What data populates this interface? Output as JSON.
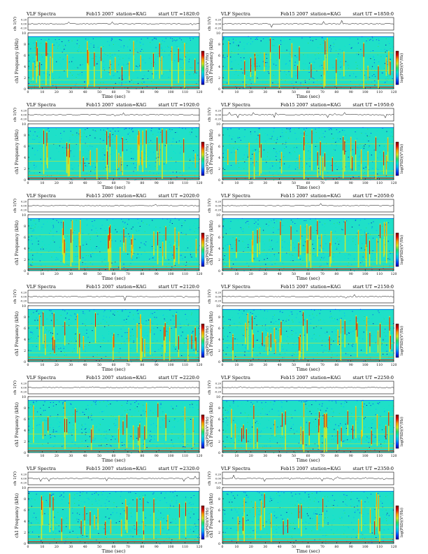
{
  "colors": {
    "background": "#1fe0c8",
    "colormap": [
      "#0000a8",
      "#0044ff",
      "#00b4ff",
      "#00e8d0",
      "#30e060",
      "#d8e820",
      "#ffa000",
      "#e01000",
      "#800000"
    ]
  },
  "chart_data": [
    {
      "type": "heatmap",
      "header_left": "VLF Spectra",
      "date": "Feb15 2007",
      "station": "station=KAG",
      "start": "start  UT =1820:0",
      "ch_label": "ch 1(V)",
      "ch_ticks": [
        "0.20",
        "0.00",
        "-0.20"
      ],
      "y_label": "ch1 Frequency (kHz)",
      "y_ticks": [
        "0",
        "2",
        "4",
        "6",
        "8",
        "10"
      ],
      "x_label": "Time (sec)",
      "x_ticks": [
        "0",
        "10",
        "20",
        "30",
        "40",
        "50",
        "60",
        "70",
        "80",
        "90",
        "100",
        "110",
        "120"
      ],
      "cbar_label": "log(PSD)(V²/Hz)",
      "xlim": [
        0,
        120
      ],
      "ylim": [
        0,
        10
      ]
    },
    {
      "type": "heatmap",
      "header_left": "VLF Spectra",
      "date": "Feb15 2007",
      "station": "station=KAG",
      "start": "start  UT =1850:0",
      "ch_label": "ch 1(V)",
      "ch_ticks": [
        "0.20",
        "0.00",
        "-0.20"
      ],
      "y_label": "ch1 Frequency (kHz)",
      "y_ticks": [
        "0",
        "2",
        "4",
        "6",
        "8",
        "10"
      ],
      "x_label": "Time (sec)",
      "x_ticks": [
        "0",
        "10",
        "20",
        "30",
        "40",
        "50",
        "60",
        "70",
        "80",
        "90",
        "100",
        "110",
        "120"
      ],
      "cbar_label": "log(PSD)(V²/Hz)",
      "xlim": [
        0,
        120
      ],
      "ylim": [
        0,
        10
      ]
    },
    {
      "type": "heatmap",
      "header_left": "VLF Spectra",
      "date": "Feb15 2007",
      "station": "station=KAG",
      "start": "start  UT =1920:0",
      "ch_label": "ch 1(V)",
      "ch_ticks": [
        "0.20",
        "0.00",
        "-0.20"
      ],
      "y_label": "ch1 Frequency (kHz)",
      "y_ticks": [
        "0",
        "2",
        "4",
        "6",
        "8",
        "10"
      ],
      "x_label": "Time (sec)",
      "x_ticks": [
        "0",
        "10",
        "20",
        "30",
        "40",
        "50",
        "60",
        "70",
        "80",
        "90",
        "100",
        "110",
        "120"
      ],
      "cbar_label": "log(PSD)(V²/Hz)",
      "xlim": [
        0,
        120
      ],
      "ylim": [
        0,
        10
      ]
    },
    {
      "type": "heatmap",
      "header_left": "VLF Spectra",
      "date": "Feb15 2007",
      "station": "station=KAG",
      "start": "start  UT =1950:0",
      "ch_label": "ch 1(V)",
      "ch_ticks": [
        "0.20",
        "0.00",
        "-0.20"
      ],
      "y_label": "ch1 Frequency (kHz)",
      "y_ticks": [
        "0",
        "2",
        "4",
        "6",
        "8",
        "10"
      ],
      "x_label": "Time (sec)",
      "x_ticks": [
        "0",
        "10",
        "20",
        "30",
        "40",
        "50",
        "60",
        "70",
        "80",
        "90",
        "100",
        "110",
        "120"
      ],
      "cbar_label": "log(PSD)(V²/Hz)",
      "xlim": [
        0,
        120
      ],
      "ylim": [
        0,
        10
      ]
    },
    {
      "type": "heatmap",
      "header_left": "VLF Spectra",
      "date": "Feb15 2007",
      "station": "station=KAG",
      "start": "start  UT =2020:0",
      "ch_label": "ch 1(V)",
      "ch_ticks": [
        "0.20",
        "0.00",
        "-0.20"
      ],
      "y_label": "ch1 Frequency (kHz)",
      "y_ticks": [
        "0",
        "2",
        "4",
        "6",
        "8",
        "10"
      ],
      "x_label": "Time (sec)",
      "x_ticks": [
        "0",
        "10",
        "20",
        "30",
        "40",
        "50",
        "60",
        "70",
        "80",
        "90",
        "100",
        "110",
        "120"
      ],
      "cbar_label": "log(PSD)(V²/Hz)",
      "xlim": [
        0,
        120
      ],
      "ylim": [
        0,
        10
      ]
    },
    {
      "type": "heatmap",
      "header_left": "VLF Spectra",
      "date": "Feb15 2007",
      "station": "station=KAG",
      "start": "start  UT =2050:0",
      "ch_label": "ch 1(V)",
      "ch_ticks": [
        "0.20",
        "0.00",
        "-0.20"
      ],
      "y_label": "ch1 Frequency (kHz)",
      "y_ticks": [
        "0",
        "2",
        "4",
        "6",
        "8",
        "10"
      ],
      "x_label": "Time (sec)",
      "x_ticks": [
        "0",
        "10",
        "20",
        "30",
        "40",
        "50",
        "60",
        "70",
        "80",
        "90",
        "100",
        "110",
        "120"
      ],
      "cbar_label": "log(PSD)(V²/Hz)",
      "xlim": [
        0,
        120
      ],
      "ylim": [
        0,
        10
      ]
    },
    {
      "type": "heatmap",
      "header_left": "VLF Spectra",
      "date": "Feb15 2007",
      "station": "station=KAG",
      "start": "start  UT =2120:0",
      "ch_label": "ch 1(V)",
      "ch_ticks": [
        "0.20",
        "0.00",
        "-0.20"
      ],
      "y_label": "ch1 Frequency (kHz)",
      "y_ticks": [
        "0",
        "2",
        "4",
        "6",
        "8",
        "10"
      ],
      "x_label": "Time (sec)",
      "x_ticks": [
        "0",
        "10",
        "20",
        "30",
        "40",
        "50",
        "60",
        "70",
        "80",
        "90",
        "100",
        "110",
        "120"
      ],
      "cbar_label": "log(PSD)(V²/Hz)",
      "xlim": [
        0,
        120
      ],
      "ylim": [
        0,
        10
      ]
    },
    {
      "type": "heatmap",
      "header_left": "VLF Spectra",
      "date": "Feb15 2007",
      "station": "station=KAG",
      "start": "start  UT =2150:0",
      "ch_label": "ch 1(V)",
      "ch_ticks": [
        "0.20",
        "0.00",
        "-0.20"
      ],
      "y_label": "ch1 Frequency (kHz)",
      "y_ticks": [
        "0",
        "2",
        "4",
        "6",
        "8",
        "10"
      ],
      "x_label": "Time (sec)",
      "x_ticks": [
        "0",
        "10",
        "20",
        "30",
        "40",
        "50",
        "60",
        "70",
        "80",
        "90",
        "100",
        "110",
        "120"
      ],
      "cbar_label": "log(PSD)(V²/Hz)",
      "xlim": [
        0,
        120
      ],
      "ylim": [
        0,
        10
      ]
    },
    {
      "type": "heatmap",
      "header_left": "VLF Spectra",
      "date": "Feb15 2007",
      "station": "station=KAG",
      "start": "start  UT =2220:0",
      "ch_label": "ch 1(V)",
      "ch_ticks": [
        "0.20",
        "0.00",
        "-0.20"
      ],
      "y_label": "ch1 Frequency (kHz)",
      "y_ticks": [
        "0",
        "2",
        "4",
        "6",
        "8",
        "10"
      ],
      "x_label": "Time (sec)",
      "x_ticks": [
        "0",
        "10",
        "20",
        "30",
        "40",
        "50",
        "60",
        "70",
        "80",
        "90",
        "100",
        "110",
        "120"
      ],
      "cbar_label": "log(PSD)(V²/Hz)",
      "xlim": [
        0,
        120
      ],
      "ylim": [
        0,
        10
      ]
    },
    {
      "type": "heatmap",
      "header_left": "VLF Spectra",
      "date": "Feb15 2007",
      "station": "station=KAG",
      "start": "start  UT =2250:0",
      "ch_label": "ch 1(V)",
      "ch_ticks": [
        "0.20",
        "0.00",
        "-0.20"
      ],
      "y_label": "ch1 Frequency (kHz)",
      "y_ticks": [
        "0",
        "2",
        "4",
        "6",
        "8",
        "10"
      ],
      "x_label": "Time (sec)",
      "x_ticks": [
        "0",
        "10",
        "20",
        "30",
        "40",
        "50",
        "60",
        "70",
        "80",
        "90",
        "100",
        "110",
        "120"
      ],
      "cbar_label": "log(PSD)(V²/Hz)",
      "xlim": [
        0,
        120
      ],
      "ylim": [
        0,
        10
      ]
    },
    {
      "type": "heatmap",
      "header_left": "VLF Spectra",
      "date": "Feb15 2007",
      "station": "station=KAG",
      "start": "start  UT =2320:0",
      "ch_label": "ch 1(V)",
      "ch_ticks": [
        "0.20",
        "0.00",
        "-0.20"
      ],
      "y_label": "ch1 Frequency (kHz)",
      "y_ticks": [
        "0",
        "2",
        "4",
        "6",
        "8",
        "10"
      ],
      "x_label": "Time (sec)",
      "x_ticks": [
        "0",
        "10",
        "20",
        "30",
        "40",
        "50",
        "60",
        "70",
        "80",
        "90",
        "100",
        "110",
        "120"
      ],
      "cbar_label": "log(PSD)(V²/Hz)",
      "xlim": [
        0,
        120
      ],
      "ylim": [
        0,
        10
      ]
    },
    {
      "type": "heatmap",
      "header_left": "VLF Spectra",
      "date": "Feb15 2007",
      "station": "station=KAG",
      "start": "start  UT =2350:0",
      "ch_label": "ch 1(V)",
      "ch_ticks": [
        "0.20",
        "0.00",
        "-0.20"
      ],
      "y_label": "ch1 Frequency (kHz)",
      "y_ticks": [
        "0",
        "2",
        "4",
        "6",
        "8",
        "10"
      ],
      "x_label": "Time (sec)",
      "x_ticks": [
        "0",
        "10",
        "20",
        "30",
        "40",
        "50",
        "60",
        "70",
        "80",
        "90",
        "100",
        "110",
        "120"
      ],
      "cbar_label": "log(PSD)(V²/Hz)",
      "xlim": [
        0,
        120
      ],
      "ylim": [
        0,
        10
      ]
    }
  ]
}
